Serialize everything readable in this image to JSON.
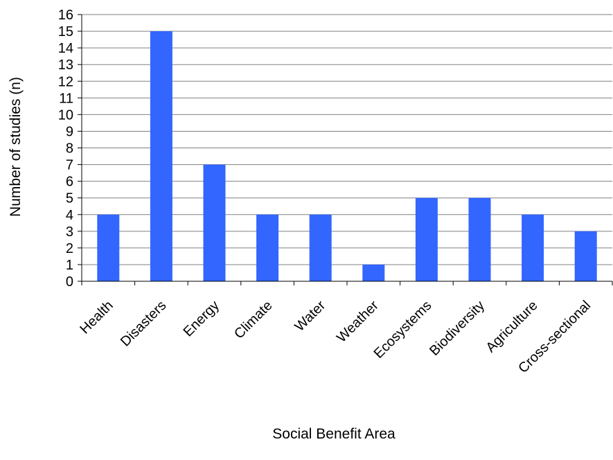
{
  "chart_data": {
    "type": "bar",
    "title": "",
    "xlabel": "Social Benefit Area",
    "ylabel": "Number of studies (n)",
    "categories": [
      "Health",
      "Disasters",
      "Energy",
      "Climate",
      "Water",
      "Weather",
      "Ecosystems",
      "Biodiversity",
      "Agriculture",
      "Cross-sectional"
    ],
    "values": [
      4,
      15,
      7,
      4,
      4,
      1,
      5,
      5,
      4,
      3
    ],
    "ylim": [
      0,
      16
    ],
    "yticks": [
      "0",
      "1",
      "2",
      "3",
      "4",
      "5",
      "6",
      "7",
      "8",
      "9",
      "10",
      "11",
      "12",
      "13",
      "14",
      "15",
      "16"
    ],
    "grid": true,
    "legend": "none",
    "bar_color": "#3366ff",
    "grid_color": "#808080"
  }
}
